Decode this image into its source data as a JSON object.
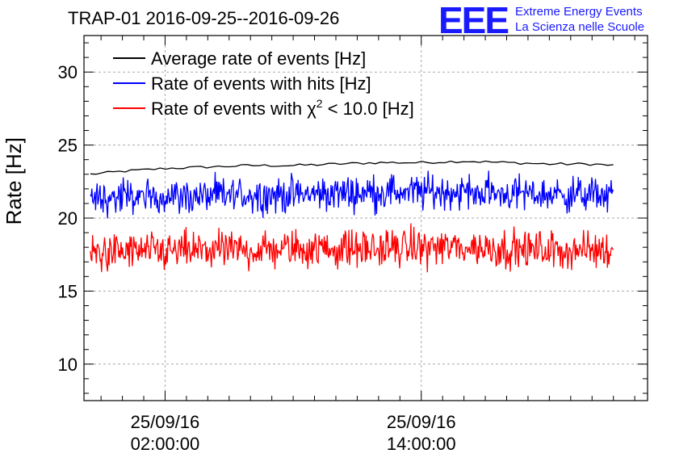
{
  "header": {
    "title": "TRAP-01 2016-09-25--2016-09-26",
    "logo_text": "EEE",
    "logo_line1": "Extreme Energy Events",
    "logo_line2": "La Scienza nelle Scuole"
  },
  "chart_data": {
    "type": "line",
    "title": "TRAP-01 2016-09-25--2016-09-26",
    "xlabel": "",
    "ylabel": "Rate [Hz]",
    "ylim": [
      7.5,
      32.5
    ],
    "yticks": [
      10,
      15,
      20,
      25,
      30
    ],
    "xtick_labels": [
      {
        "date": "25/09/16",
        "time": "02:00:00"
      },
      {
        "date": "25/09/16",
        "time": "14:00:00"
      }
    ],
    "grid": true,
    "legend_position": "top-left",
    "x_range_hours": [
      -1.8,
      24.6
    ],
    "series": [
      {
        "name": "Average rate of events [Hz]",
        "color": "#000000",
        "x_hours": [
          -1.5,
          0,
          2,
          4,
          6,
          8,
          10,
          12,
          14,
          16,
          18,
          20,
          22,
          23
        ],
        "values": [
          23.0,
          23.2,
          23.4,
          23.5,
          23.6,
          23.6,
          23.7,
          23.8,
          23.8,
          23.9,
          23.8,
          23.7,
          23.7,
          23.6
        ]
      },
      {
        "name": "Rate of events with hits [Hz]",
        "color": "#0000ff",
        "x_hours": [
          -1.5,
          0,
          2,
          4,
          6,
          8,
          10,
          12,
          14,
          16,
          18,
          20,
          22,
          23
        ],
        "values": [
          21.3,
          21.4,
          21.5,
          21.5,
          21.6,
          21.6,
          21.7,
          21.8,
          21.8,
          21.8,
          21.7,
          21.6,
          21.6,
          21.6
        ],
        "spread": [
          20.0,
          22.8
        ]
      },
      {
        "name": "Rate of events with χ² < 10.0 [Hz]",
        "legend_label": "Rate of events with",
        "legend_symbol": "χ",
        "legend_sup": "2",
        "legend_rest": " < 10.0 [Hz]",
        "color": "#ff0000",
        "x_hours": [
          -1.5,
          0,
          2,
          4,
          6,
          8,
          10,
          12,
          14,
          16,
          18,
          20,
          22,
          23
        ],
        "values": [
          17.6,
          17.7,
          17.7,
          17.8,
          17.8,
          17.9,
          17.9,
          17.9,
          18.0,
          18.0,
          17.9,
          17.8,
          17.8,
          17.8
        ],
        "spread": [
          16.3,
          19.3
        ]
      }
    ]
  }
}
